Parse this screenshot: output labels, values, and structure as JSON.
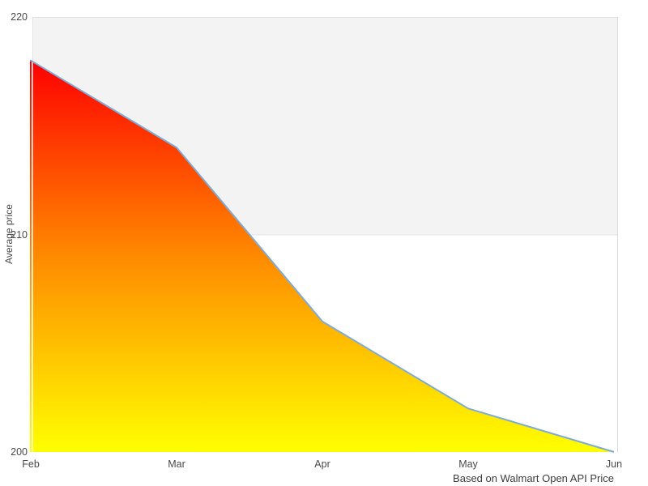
{
  "chart_data": {
    "type": "area",
    "categories": [
      "Feb",
      "Mar",
      "Apr",
      "May",
      "Jun"
    ],
    "series": [
      {
        "name": "Average price",
        "values": [
          218,
          214,
          206,
          202,
          200
        ]
      }
    ],
    "title": "",
    "xlabel": "",
    "ylabel": "Average price",
    "ylim": [
      200,
      220
    ],
    "yticks": [
      200,
      210,
      220
    ],
    "grid_band_range": [
      210,
      220
    ],
    "legend_position": "none",
    "caption": "Based on Walmart Open API Price",
    "colors": {
      "line": "#7fabd7",
      "gradient_top": "#fe0000",
      "gradient_mid": "#ff8a00",
      "gradient_bottom": "#ffff00",
      "band_fill": "#f3f3f3",
      "band_border": "#e3e3e3",
      "spine": "#dcdcdc",
      "label_text": "#4a4a4a",
      "axis_gridline_overlay": "#ffffff"
    }
  }
}
